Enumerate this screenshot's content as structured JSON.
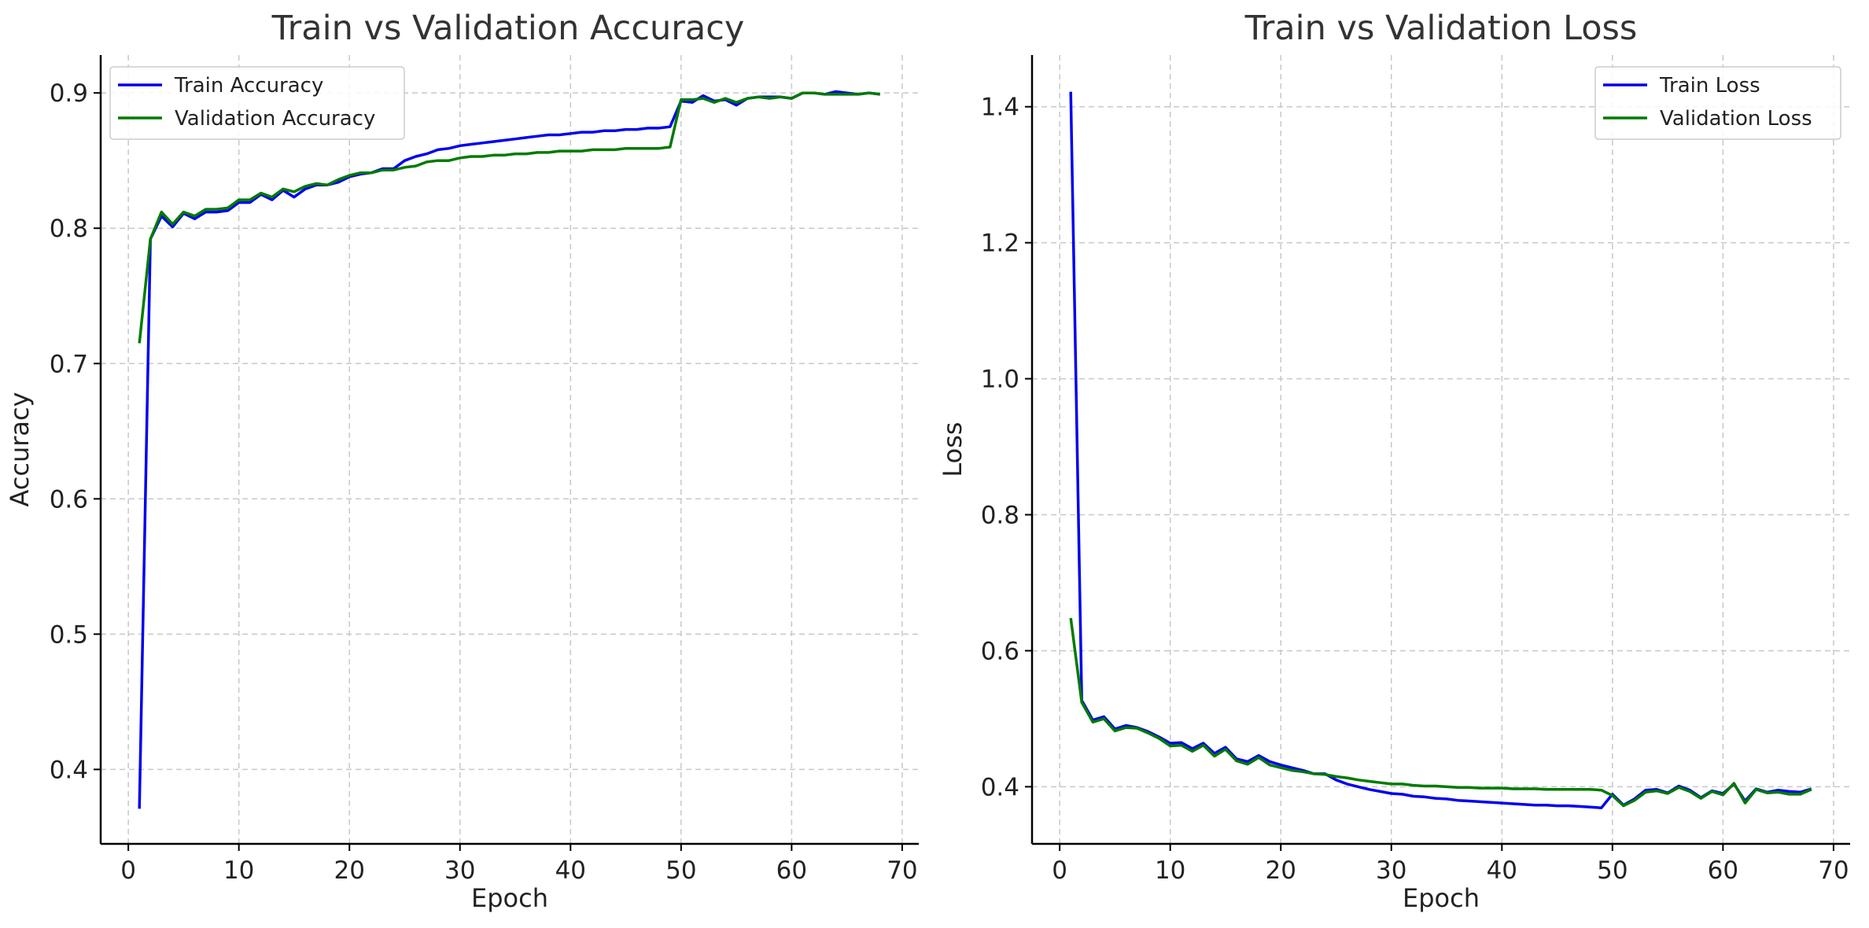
{
  "colors": {
    "train": "#0000ee",
    "validation": "#007a00"
  },
  "chart_data": [
    {
      "type": "line",
      "title": "Train vs Validation Accuracy",
      "xlabel": "Epoch",
      "ylabel": "Accuracy",
      "xlim": [
        -2.5,
        71.5
      ],
      "ylim": [
        0.345,
        0.928
      ],
      "xticks": [
        0,
        10,
        20,
        30,
        40,
        50,
        60,
        70
      ],
      "yticks": [
        0.4,
        0.5,
        0.6,
        0.7,
        0.8,
        0.9
      ],
      "grid": true,
      "legend_position": "top-left",
      "series": [
        {
          "name": "Train Accuracy",
          "color": "#0000ee",
          "x": [
            1,
            2,
            3,
            4,
            5,
            6,
            7,
            8,
            9,
            10,
            11,
            12,
            13,
            14,
            15,
            16,
            17,
            18,
            19,
            20,
            21,
            22,
            23,
            24,
            25,
            26,
            27,
            28,
            29,
            30,
            31,
            32,
            33,
            34,
            35,
            36,
            37,
            38,
            39,
            40,
            41,
            42,
            43,
            44,
            45,
            46,
            47,
            48,
            49,
            50,
            51,
            52,
            53,
            54,
            55,
            56,
            57,
            58,
            59,
            60,
            61,
            62,
            63,
            64,
            65,
            66,
            67,
            68
          ],
          "y": [
            0.371,
            0.792,
            0.809,
            0.801,
            0.811,
            0.807,
            0.812,
            0.812,
            0.813,
            0.819,
            0.819,
            0.825,
            0.821,
            0.828,
            0.823,
            0.829,
            0.832,
            0.832,
            0.834,
            0.838,
            0.84,
            0.841,
            0.844,
            0.844,
            0.85,
            0.853,
            0.855,
            0.858,
            0.859,
            0.861,
            0.862,
            0.863,
            0.864,
            0.865,
            0.866,
            0.867,
            0.868,
            0.869,
            0.869,
            0.87,
            0.871,
            0.871,
            0.872,
            0.872,
            0.873,
            0.873,
            0.874,
            0.874,
            0.875,
            0.894,
            0.893,
            0.898,
            0.894,
            0.895,
            0.891,
            0.896,
            0.897,
            0.897,
            0.897,
            0.896,
            0.9,
            0.9,
            0.899,
            0.901,
            0.9,
            0.899,
            0.9,
            0.899
          ]
        },
        {
          "name": "Validation Accuracy",
          "color": "#007a00",
          "x": [
            1,
            2,
            3,
            4,
            5,
            6,
            7,
            8,
            9,
            10,
            11,
            12,
            13,
            14,
            15,
            16,
            17,
            18,
            19,
            20,
            21,
            22,
            23,
            24,
            25,
            26,
            27,
            28,
            29,
            30,
            31,
            32,
            33,
            34,
            35,
            36,
            37,
            38,
            39,
            40,
            41,
            42,
            43,
            44,
            45,
            46,
            47,
            48,
            49,
            50,
            51,
            52,
            53,
            54,
            55,
            56,
            57,
            58,
            59,
            60,
            61,
            62,
            63,
            64,
            65,
            66,
            67,
            68
          ],
          "y": [
            0.715,
            0.792,
            0.812,
            0.803,
            0.812,
            0.809,
            0.814,
            0.814,
            0.815,
            0.821,
            0.821,
            0.826,
            0.823,
            0.829,
            0.827,
            0.831,
            0.833,
            0.832,
            0.836,
            0.839,
            0.841,
            0.841,
            0.843,
            0.843,
            0.845,
            0.846,
            0.849,
            0.85,
            0.85,
            0.852,
            0.853,
            0.853,
            0.854,
            0.854,
            0.855,
            0.855,
            0.856,
            0.856,
            0.857,
            0.857,
            0.857,
            0.858,
            0.858,
            0.858,
            0.859,
            0.859,
            0.859,
            0.859,
            0.86,
            0.895,
            0.895,
            0.896,
            0.893,
            0.896,
            0.893,
            0.896,
            0.897,
            0.896,
            0.897,
            0.896,
            0.9,
            0.9,
            0.899,
            0.899,
            0.899,
            0.899,
            0.9,
            0.899
          ]
        }
      ]
    },
    {
      "type": "line",
      "title": "Train vs Validation Loss",
      "xlabel": "Epoch",
      "ylabel": "Loss",
      "xlim": [
        -2.5,
        71.5
      ],
      "ylim": [
        0.316,
        1.476
      ],
      "xticks": [
        0,
        10,
        20,
        30,
        40,
        50,
        60,
        70
      ],
      "yticks": [
        0.4,
        0.6,
        0.8,
        1.0,
        1.2,
        1.4
      ],
      "grid": true,
      "legend_position": "top-right",
      "series": [
        {
          "name": "Train Loss",
          "color": "#0000ee",
          "x": [
            1,
            2,
            3,
            4,
            5,
            6,
            7,
            8,
            9,
            10,
            11,
            12,
            13,
            14,
            15,
            16,
            17,
            18,
            19,
            20,
            21,
            22,
            23,
            24,
            25,
            26,
            27,
            28,
            29,
            30,
            31,
            32,
            33,
            34,
            35,
            36,
            37,
            38,
            39,
            40,
            41,
            42,
            43,
            44,
            45,
            46,
            47,
            48,
            49,
            50,
            51,
            52,
            53,
            54,
            55,
            56,
            57,
            58,
            59,
            60,
            61,
            62,
            63,
            64,
            65,
            66,
            67,
            68
          ],
          "y": [
            1.422,
            0.527,
            0.498,
            0.503,
            0.485,
            0.49,
            0.487,
            0.481,
            0.473,
            0.464,
            0.465,
            0.456,
            0.464,
            0.449,
            0.458,
            0.441,
            0.437,
            0.446,
            0.437,
            0.432,
            0.428,
            0.424,
            0.419,
            0.419,
            0.41,
            0.404,
            0.4,
            0.396,
            0.393,
            0.39,
            0.389,
            0.386,
            0.385,
            0.383,
            0.382,
            0.38,
            0.379,
            0.378,
            0.377,
            0.376,
            0.375,
            0.374,
            0.373,
            0.373,
            0.372,
            0.372,
            0.371,
            0.37,
            0.369,
            0.389,
            0.373,
            0.382,
            0.395,
            0.396,
            0.391,
            0.401,
            0.395,
            0.384,
            0.394,
            0.39,
            0.404,
            0.379,
            0.397,
            0.392,
            0.395,
            0.393,
            0.392,
            0.397
          ]
        },
        {
          "name": "Validation Loss",
          "color": "#007a00",
          "x": [
            1,
            2,
            3,
            4,
            5,
            6,
            7,
            8,
            9,
            10,
            11,
            12,
            13,
            14,
            15,
            16,
            17,
            18,
            19,
            20,
            21,
            22,
            23,
            24,
            25,
            26,
            27,
            28,
            29,
            30,
            31,
            32,
            33,
            34,
            35,
            36,
            37,
            38,
            39,
            40,
            41,
            42,
            43,
            44,
            45,
            46,
            47,
            48,
            49,
            50,
            51,
            52,
            53,
            54,
            55,
            56,
            57,
            58,
            59,
            60,
            61,
            62,
            63,
            64,
            65,
            66,
            67,
            68
          ],
          "y": [
            0.648,
            0.524,
            0.495,
            0.5,
            0.482,
            0.487,
            0.486,
            0.479,
            0.471,
            0.46,
            0.461,
            0.452,
            0.461,
            0.445,
            0.455,
            0.438,
            0.433,
            0.443,
            0.432,
            0.428,
            0.424,
            0.422,
            0.419,
            0.418,
            0.415,
            0.413,
            0.41,
            0.408,
            0.406,
            0.404,
            0.404,
            0.402,
            0.401,
            0.401,
            0.4,
            0.399,
            0.399,
            0.398,
            0.398,
            0.398,
            0.397,
            0.397,
            0.397,
            0.396,
            0.396,
            0.396,
            0.396,
            0.396,
            0.395,
            0.387,
            0.372,
            0.38,
            0.392,
            0.394,
            0.39,
            0.399,
            0.393,
            0.383,
            0.393,
            0.388,
            0.405,
            0.376,
            0.396,
            0.391,
            0.392,
            0.389,
            0.389,
            0.396
          ]
        }
      ]
    }
  ]
}
